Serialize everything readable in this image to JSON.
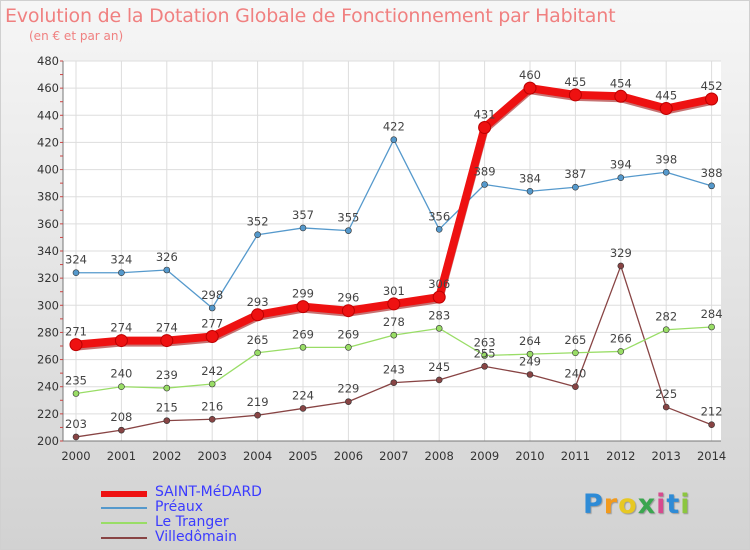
{
  "title": "Evolution de la Dotation Globale de Fonctionnement par Habitant",
  "subtitle": "(en € et par an)",
  "brand": {
    "letters": [
      "P",
      "r",
      "o",
      "x",
      "i",
      "t",
      "i"
    ],
    "colors": [
      "#2e8bd6",
      "#f29a1c",
      "#e7c823",
      "#3aa64f",
      "#d64a8e",
      "#2e8bd6",
      "#8cc63f"
    ]
  },
  "chart_data": {
    "type": "line",
    "x": [
      "2000",
      "2001",
      "2002",
      "2003",
      "2004",
      "2005",
      "2006",
      "2007",
      "2008",
      "2009",
      "2010",
      "2011",
      "2012",
      "2013",
      "2014"
    ],
    "ylim": [
      200,
      480
    ],
    "yticks": [
      "200",
      "220",
      "240",
      "260",
      "280",
      "300",
      "320",
      "340",
      "360",
      "380",
      "400",
      "420",
      "440",
      "460",
      "480"
    ],
    "grid": true,
    "legend_position": "bottom-left",
    "series": [
      {
        "name": "SAINT-MéDARD",
        "color": "#ee1111",
        "values": [
          271,
          274,
          274,
          277,
          293,
          299,
          296,
          301,
          306,
          431,
          460,
          455,
          454,
          445,
          452
        ]
      },
      {
        "name": "Préaux",
        "color": "#5599cc",
        "values": [
          324,
          324,
          326,
          298,
          352,
          357,
          355,
          422,
          356,
          389,
          384,
          387,
          394,
          398,
          388
        ]
      },
      {
        "name": "Le Tranger",
        "color": "#99dd66",
        "values": [
          235,
          240,
          239,
          242,
          265,
          269,
          269,
          278,
          283,
          263,
          264,
          265,
          266,
          282,
          284
        ]
      },
      {
        "name": "Villedômain",
        "color": "#884444",
        "values": [
          203,
          208,
          215,
          216,
          219,
          224,
          229,
          243,
          245,
          255,
          249,
          240,
          329,
          225,
          212
        ]
      }
    ]
  }
}
